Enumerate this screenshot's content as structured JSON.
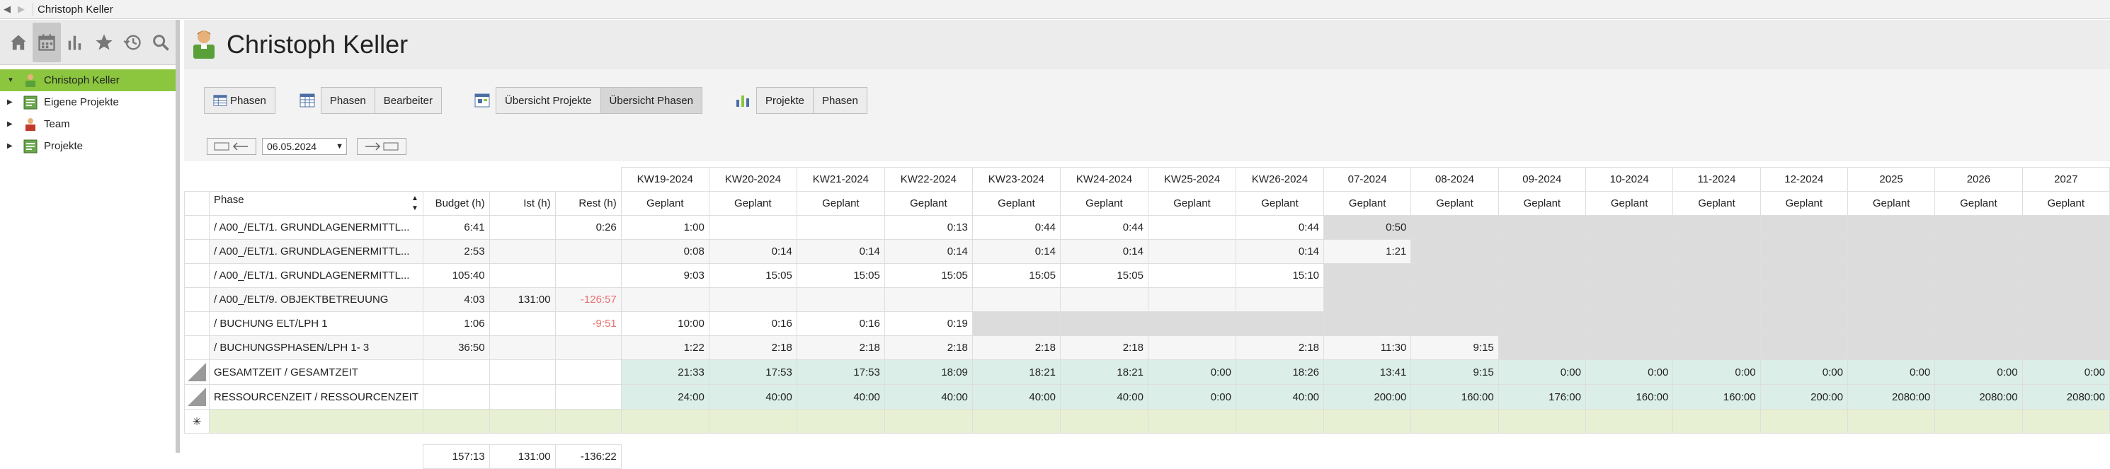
{
  "window": {
    "title": "Christoph Keller"
  },
  "sidebar": {
    "tools": [
      "home-icon",
      "calendar-icon",
      "bar-chart-icon",
      "star-icon",
      "history-icon",
      "search-icon"
    ],
    "tree": [
      {
        "label": "Christoph Keller",
        "selected": true,
        "icon": "person-icon"
      },
      {
        "label": "Eigene Projekte",
        "icon": "project-icon"
      },
      {
        "label": "Team",
        "icon": "team-icon"
      },
      {
        "label": "Projekte",
        "icon": "project-icon"
      }
    ]
  },
  "header": {
    "title": "Christoph Keller"
  },
  "toolbar": {
    "phasen_btn": "Phasen",
    "group1": [
      "Phasen",
      "Bearbeiter"
    ],
    "group2": [
      "Übersicht Projekte",
      "Übersicht Phasen"
    ],
    "group3": [
      "Projekte",
      "Phasen"
    ]
  },
  "datebar": {
    "date": "06.05.2024"
  },
  "table": {
    "period_headers": [
      "KW19-2024",
      "KW20-2024",
      "KW21-2024",
      "KW22-2024",
      "KW23-2024",
      "KW24-2024",
      "KW25-2024",
      "KW26-2024",
      "07-2024",
      "08-2024",
      "09-2024",
      "10-2024",
      "11-2024",
      "12-2024",
      "2025",
      "2026",
      "2027"
    ],
    "col_phase": "Phase",
    "col_budget": "Budget (h)",
    "col_ist": "Ist (h)",
    "col_rest": "Rest (h)",
    "col_sub": "Geplant",
    "rows": [
      {
        "phase": "/ A00_/ELT/1. GRUNDLAGENERMITTL...",
        "budget": "6:41",
        "ist": "",
        "rest": "0:26",
        "vals": [
          "1:00",
          "",
          "",
          "0:13",
          "0:44",
          "0:44",
          "",
          "0:44",
          "0:50"
        ]
      },
      {
        "phase": "/ A00_/ELT/1. GRUNDLAGENERMITTL...",
        "budget": "2:53",
        "ist": "",
        "rest": "",
        "vals": [
          "0:08",
          "0:14",
          "0:14",
          "0:14",
          "0:14",
          "0:14",
          "",
          "0:14",
          "1:21"
        ]
      },
      {
        "phase": "/ A00_/ELT/1. GRUNDLAGENERMITTL...",
        "budget": "105:40",
        "ist": "",
        "rest": "",
        "vals": [
          "9:03",
          "15:05",
          "15:05",
          "15:05",
          "15:05",
          "15:05",
          "",
          "15:10"
        ]
      },
      {
        "phase": "/ A00_/ELT/9. OBJEKTBETREUUNG",
        "budget": "4:03",
        "ist": "131:00",
        "rest": "-126:57",
        "vals": [
          "",
          "",
          "",
          "",
          "",
          "",
          "",
          "",
          ""
        ]
      },
      {
        "phase": "/ BUCHUNG ELT/LPH 1",
        "budget": "1:06",
        "ist": "",
        "rest": "-9:51",
        "vals": [
          "10:00",
          "0:16",
          "0:16",
          "0:19"
        ]
      },
      {
        "phase": "/ BUCHUNGSPHASEN/LPH 1- 3",
        "budget": "36:50",
        "ist": "",
        "rest": "",
        "vals": [
          "1:22",
          "2:18",
          "2:18",
          "2:18",
          "2:18",
          "2:18",
          "",
          "2:18",
          "11:30",
          "9:15"
        ]
      }
    ],
    "sum_rows": [
      {
        "label": "GESAMTZEIT / GESAMTZEIT",
        "vals": [
          "21:33",
          "17:53",
          "17:53",
          "18:09",
          "18:21",
          "18:21",
          "0:00",
          "18:26",
          "13:41",
          "9:15",
          "0:00",
          "0:00",
          "0:00",
          "0:00",
          "0:00",
          "0:00",
          "0:00"
        ]
      },
      {
        "label": "RESSOURCENZEIT / RESSOURCENZEIT",
        "vals": [
          "24:00",
          "40:00",
          "40:00",
          "40:00",
          "40:00",
          "40:00",
          "0:00",
          "40:00",
          "200:00",
          "160:00",
          "176:00",
          "160:00",
          "160:00",
          "200:00",
          "2080:00",
          "2080:00",
          "2080:00"
        ]
      }
    ],
    "totals": {
      "budget": "157:13",
      "ist": "131:00",
      "rest": "-136:22"
    }
  }
}
